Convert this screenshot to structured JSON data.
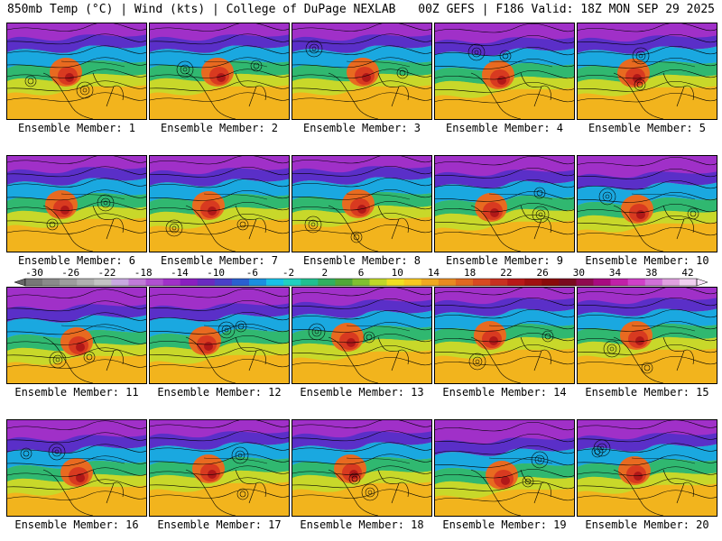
{
  "header": {
    "left": "850mb Temp (°C) | Wind (kts) | College of DuPage NEXLAB",
    "right": "00Z GEFS | F186 Valid: 18Z MON SEP 29 2025"
  },
  "members": [
    "Ensemble Member: 1",
    "Ensemble Member: 2",
    "Ensemble Member: 3",
    "Ensemble Member: 4",
    "Ensemble Member: 5",
    "Ensemble Member: 6",
    "Ensemble Member: 7",
    "Ensemble Member: 8",
    "Ensemble Member: 9",
    "Ensemble Member: 10",
    "Ensemble Member: 11",
    "Ensemble Member: 12",
    "Ensemble Member: 13",
    "Ensemble Member: 14",
    "Ensemble Member: 15",
    "Ensemble Member: 16",
    "Ensemble Member: 17",
    "Ensemble Member: 18",
    "Ensemble Member: 19",
    "Ensemble Member: 20"
  ],
  "colorbar": {
    "ticks": [
      "-30",
      "-26",
      "-22",
      "-18",
      "-14",
      "-10",
      "-6",
      "-2",
      "2",
      "6",
      "10",
      "14",
      "18",
      "22",
      "26",
      "30",
      "34",
      "38",
      "42"
    ],
    "colors": [
      "#777777",
      "#8a8a8a",
      "#9d9d9d",
      "#b0b0b0",
      "#c3c3c3",
      "#c8a8e0",
      "#c07ad8",
      "#b050d0",
      "#a030c8",
      "#8a1ec0",
      "#6a2ac0",
      "#4a40c8",
      "#2a60d0",
      "#1a90e0",
      "#18c0e8",
      "#20d0c0",
      "#20c090",
      "#30b060",
      "#50a838",
      "#80c030",
      "#c0d828",
      "#f0e020",
      "#f8c820",
      "#f0a820",
      "#e88a20",
      "#e06820",
      "#d84a20",
      "#c83020",
      "#b81818",
      "#a01010",
      "#8a0a0a",
      "#7a0a20",
      "#900a50",
      "#a80a80",
      "#c020a8",
      "#d040c8",
      "#d070d8",
      "#e0a0e0",
      "#f0d0f0"
    ]
  }
}
